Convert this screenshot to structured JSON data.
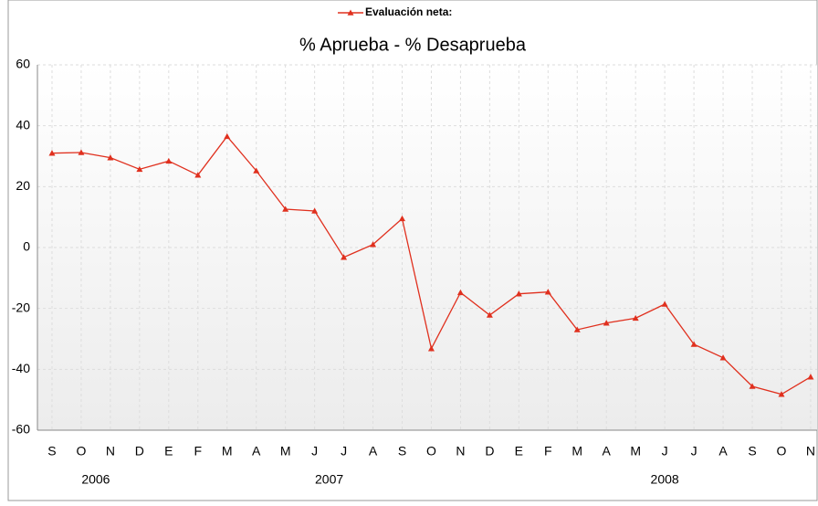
{
  "chart_data": {
    "type": "line",
    "title": "% Aprueba - % Desaprueba",
    "categories": [
      "S",
      "O",
      "N",
      "D",
      "E",
      "F",
      "M",
      "A",
      "M",
      "J",
      "J",
      "A",
      "S",
      "O",
      "N",
      "D",
      "E",
      "F",
      "M",
      "A",
      "M",
      "J",
      "J",
      "A",
      "S",
      "O",
      "N"
    ],
    "years": [
      {
        "label": "2006",
        "count": 4
      },
      {
        "label": "2007",
        "count": 12
      },
      {
        "label": "2008",
        "count": 11
      }
    ],
    "series": [
      {
        "name": "Evaluación neta:",
        "color": "#e0301e",
        "values": [
          31,
          31.2,
          29.5,
          25.7,
          28.4,
          23.8,
          36.5,
          25.2,
          12.6,
          12,
          -3.2,
          1,
          9.5,
          -33.2,
          -14.8,
          -22.2,
          -15.2,
          -14.6,
          -27,
          -24.8,
          -23.2,
          -18.6,
          -31.8,
          -36.2,
          -45.6,
          -48.2,
          -42.5
        ]
      }
    ],
    "ylim": [
      -60,
      60
    ],
    "yticks": [
      -60,
      -40,
      -20,
      0,
      20,
      40,
      60
    ],
    "grid": true,
    "legend": "top"
  }
}
